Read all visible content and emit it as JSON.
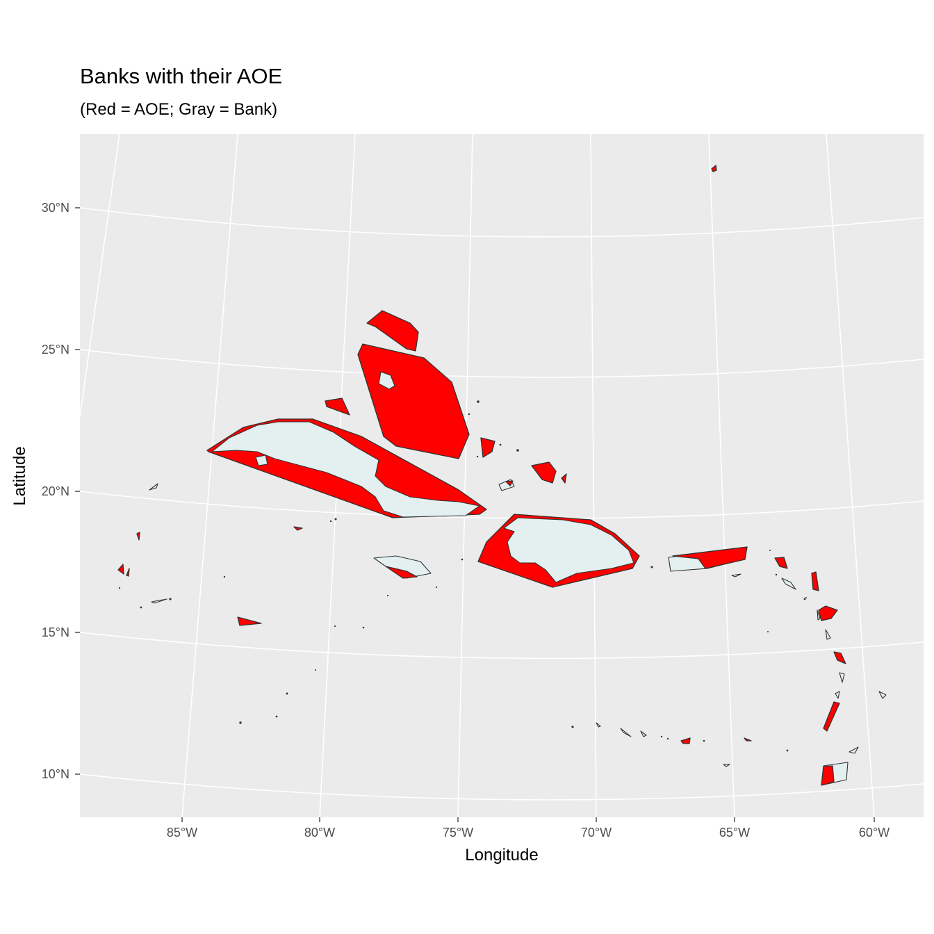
{
  "title": "Banks with their AOE",
  "subtitle": "(Red = AOE; Gray = Bank)",
  "colors": {
    "aoe": "#ff0000",
    "bank": "#e4eff0",
    "panel": "#ebebeb",
    "grid": "#ffffff"
  },
  "axes": {
    "xlabel": "Longitude",
    "ylabel": "Latitude",
    "x_ticks": [
      "85°W",
      "80°W",
      "75°W",
      "70°W",
      "65°W",
      "60°W"
    ],
    "y_ticks": [
      "30°N",
      "25°N",
      "20°N",
      "15°N",
      "10°N"
    ],
    "xlim": [
      -88.5,
      -58.5
    ],
    "ylim": [
      8.5,
      32.5
    ]
  },
  "legend_note": "Red = AOE; Gray = Bank"
}
